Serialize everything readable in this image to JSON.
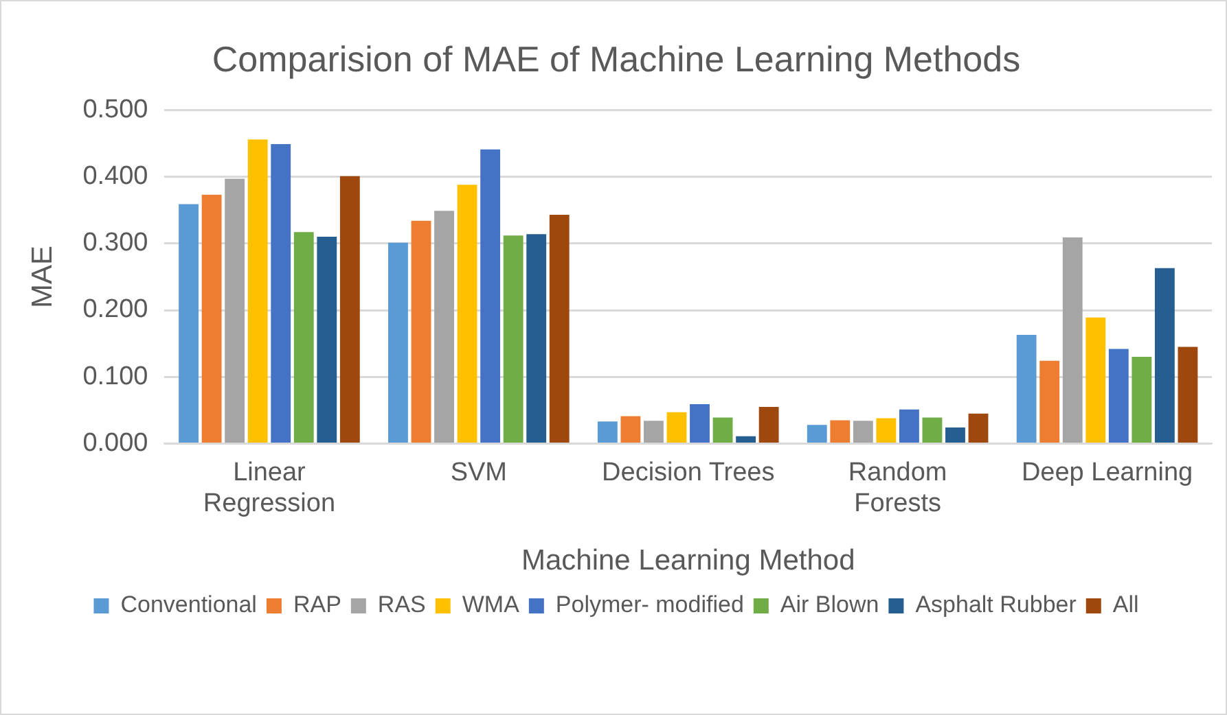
{
  "chart_data": {
    "type": "bar",
    "title": "Comparision of MAE of Machine Learning Methods",
    "xlabel": "Machine Learning Method",
    "ylabel": "MAE",
    "categories": [
      "Linear Regression",
      "SVM",
      "Decision Trees",
      "Random Forests",
      "Deep Learning"
    ],
    "series": [
      {
        "name": "Conventional",
        "color": "#5b9bd5",
        "values": [
          0.359,
          0.301,
          0.033,
          0.028,
          0.163
        ]
      },
      {
        "name": "RAP",
        "color": "#ed7d31",
        "values": [
          0.373,
          0.334,
          0.041,
          0.035,
          0.124
        ]
      },
      {
        "name": "RAS",
        "color": "#a5a5a5",
        "values": [
          0.397,
          0.349,
          0.034,
          0.034,
          0.309
        ]
      },
      {
        "name": "WMA",
        "color": "#ffc000",
        "values": [
          0.456,
          0.388,
          0.047,
          0.038,
          0.189
        ]
      },
      {
        "name": "Polymer- modified",
        "color": "#4472c4",
        "values": [
          0.449,
          0.441,
          0.059,
          0.051,
          0.142
        ]
      },
      {
        "name": "Air Blown",
        "color": "#70ad47",
        "values": [
          0.317,
          0.312,
          0.039,
          0.039,
          0.13
        ]
      },
      {
        "name": "Asphalt Rubber",
        "color": "#255e91",
        "values": [
          0.31,
          0.314,
          0.011,
          0.024,
          0.263
        ]
      },
      {
        "name": "All",
        "color": "#9e480e",
        "values": [
          0.401,
          0.343,
          0.055,
          0.045,
          0.145
        ]
      }
    ],
    "ylim": [
      0,
      0.5
    ],
    "yticks": [
      {
        "value": 0,
        "label": "0.000"
      },
      {
        "value": 0.1,
        "label": "0.100"
      },
      {
        "value": 0.2,
        "label": "0.200"
      },
      {
        "value": 0.3,
        "label": "0.300"
      },
      {
        "value": 0.4,
        "label": "0.400"
      },
      {
        "value": 0.5,
        "label": "0.500"
      }
    ],
    "grid": "y",
    "legend": "bottom"
  }
}
